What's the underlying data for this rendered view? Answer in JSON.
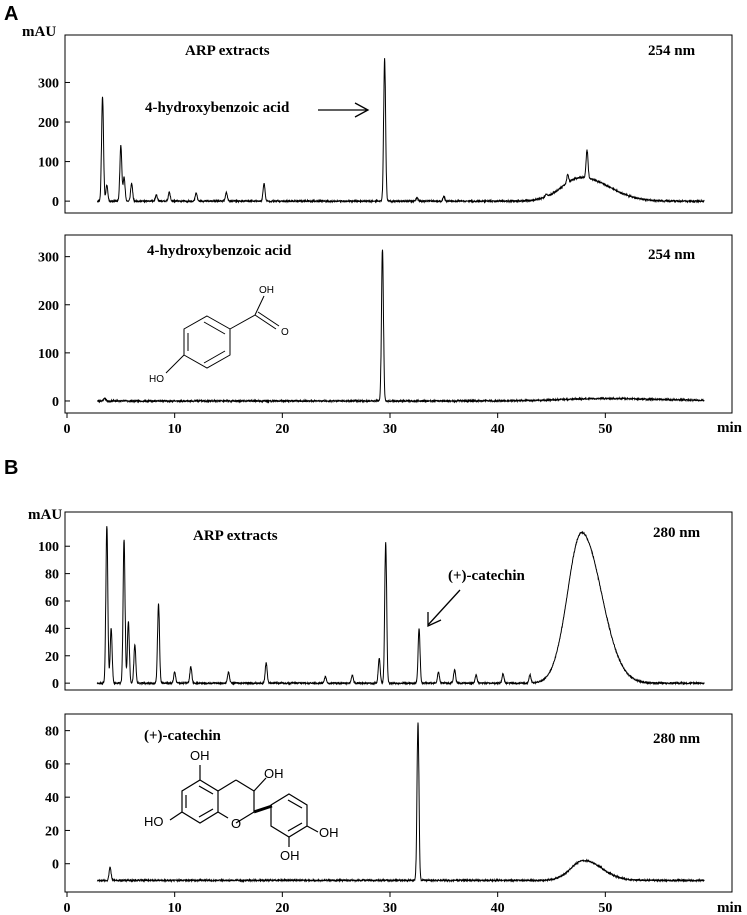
{
  "figure": {
    "panel_a_letter": "A",
    "panel_b_letter": "B",
    "x_unit": "min",
    "x_ticks": [
      "0",
      "10",
      "20",
      "30",
      "40",
      "50"
    ],
    "a_x_ticks": [
      "0",
      "10",
      "20",
      "30",
      "40",
      "50"
    ],
    "b_x_ticks": [
      "0",
      "10",
      "20",
      "30",
      "40",
      "50"
    ]
  },
  "structures": {
    "hba_oh_top": "OH",
    "hba_o": "O",
    "hba_ho": "HO",
    "cat_oh_top": "OH",
    "cat_oh_mid": "OH",
    "cat_ho_left": "HO",
    "cat_o": "O",
    "cat_oh_r1": "OH",
    "cat_oh_r2": "OH"
  },
  "chart_data": [
    {
      "type": "line",
      "panel": "A-top",
      "title": "ARP extracts",
      "wavelength": "254 nm",
      "ylabel": "mAU",
      "xlabel": "min",
      "xlim": [
        0,
        60
      ],
      "ylim": [
        -30,
        420
      ],
      "yticks": [
        "0",
        "100",
        "200",
        "300"
      ],
      "yticks_values": [
        0,
        100,
        200,
        300
      ],
      "annotation": "4-hydroxybenzoic acid",
      "annotation_peak_x": 29.5,
      "series": [
        {
          "peaks": [
            [
              3.3,
              265
            ],
            [
              3.7,
              40
            ],
            [
              5.0,
              140
            ],
            [
              5.3,
              60
            ],
            [
              6.0,
              45
            ],
            [
              8.3,
              15
            ],
            [
              9.5,
              22
            ],
            [
              12.0,
              20
            ],
            [
              14.8,
              22
            ],
            [
              18.3,
              45
            ],
            [
              29.5,
              360
            ],
            [
              32.5,
              8
            ],
            [
              35.0,
              12
            ],
            [
              44.5,
              6
            ],
            [
              46.5,
              20
            ],
            [
              48.3,
              70
            ]
          ],
          "broad": [
            [
              47.8,
              1.8,
              60
            ]
          ]
        }
      ]
    },
    {
      "type": "line",
      "panel": "A-bottom",
      "title": "4-hydroxybenzoic acid",
      "wavelength": "254 nm",
      "ylabel": "",
      "xlabel": "min",
      "xlim": [
        0,
        60
      ],
      "ylim": [
        -25,
        345
      ],
      "yticks": [
        "0",
        "100",
        "200",
        "300"
      ],
      "yticks_values": [
        0,
        100,
        200,
        300
      ],
      "series": [
        {
          "peaks": [
            [
              3.5,
              6
            ],
            [
              29.3,
              315
            ]
          ],
          "broad": [
            [
              50.0,
              4.0,
              5
            ]
          ]
        }
      ]
    },
    {
      "type": "line",
      "panel": "B-top",
      "title": "ARP extracts",
      "wavelength": "280 nm",
      "ylabel": "mAU",
      "xlabel": "min",
      "xlim": [
        0,
        60
      ],
      "ylim": [
        -5,
        125
      ],
      "yticks": [
        "0",
        "20",
        "40",
        "60",
        "80",
        "100"
      ],
      "yticks_values": [
        0,
        20,
        40,
        60,
        80,
        100
      ],
      "annotation": "(+)-catechin",
      "annotation_peak_x": 32.7,
      "series": [
        {
          "peaks": [
            [
              3.7,
              115
            ],
            [
              4.1,
              40
            ],
            [
              5.3,
              105
            ],
            [
              5.7,
              45
            ],
            [
              6.3,
              28
            ],
            [
              8.5,
              58
            ],
            [
              10.0,
              8
            ],
            [
              11.5,
              12
            ],
            [
              15.0,
              8
            ],
            [
              18.5,
              15
            ],
            [
              24.0,
              5
            ],
            [
              26.5,
              6
            ],
            [
              29.0,
              18
            ],
            [
              29.6,
              103
            ],
            [
              32.7,
              40
            ],
            [
              34.5,
              8
            ],
            [
              36.0,
              10
            ],
            [
              38.0,
              6
            ],
            [
              40.5,
              7
            ],
            [
              43.0,
              6
            ]
          ],
          "broad": [
            [
              47.8,
              1.3,
              110
            ]
          ]
        }
      ]
    },
    {
      "type": "line",
      "panel": "B-bottom",
      "title": "(+)-catechin",
      "wavelength": "280 nm",
      "ylabel": "",
      "xlabel": "min",
      "xlim": [
        0,
        60
      ],
      "ylim": [
        -17,
        90
      ],
      "yticks": [
        "0",
        "20",
        "40",
        "60",
        "80"
      ],
      "yticks_values": [
        0,
        20,
        40,
        60,
        80
      ],
      "series": [
        {
          "peaks": [
            [
              4.0,
              8
            ],
            [
              32.6,
              95
            ]
          ],
          "broad": [
            [
              48.0,
              1.2,
              12
            ]
          ],
          "baseline": -10
        }
      ]
    }
  ]
}
